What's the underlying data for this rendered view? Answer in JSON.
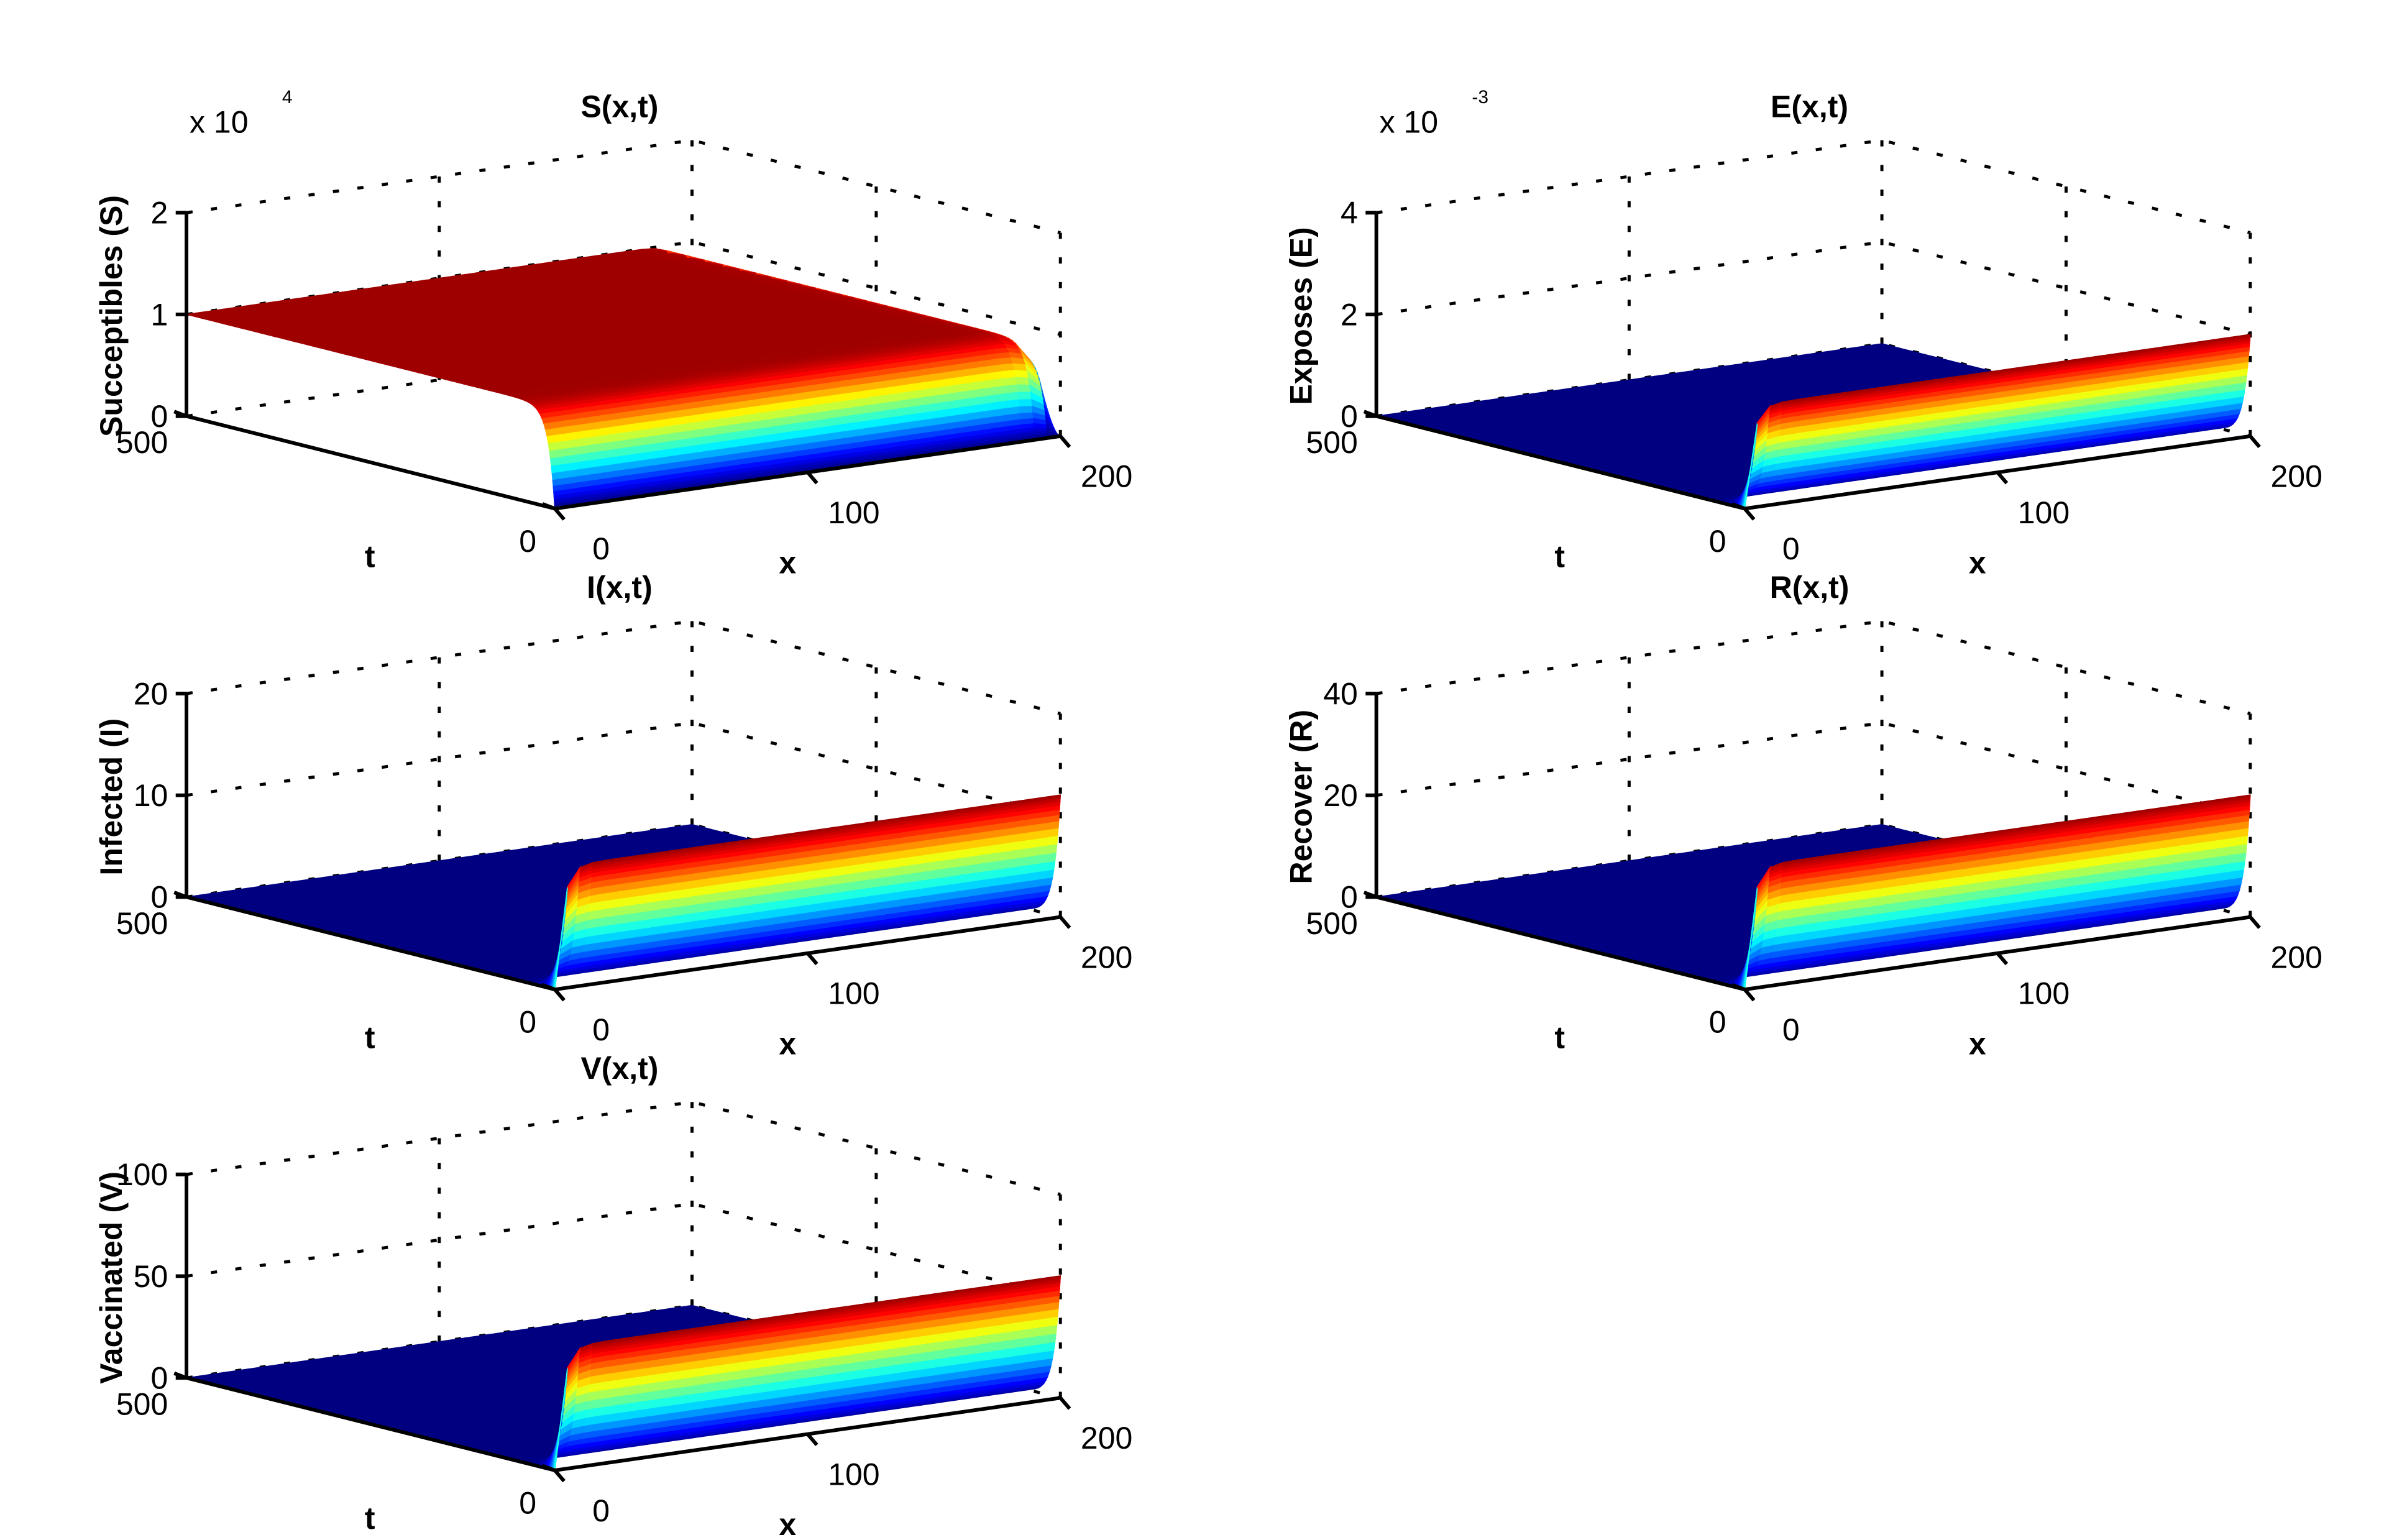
{
  "figure": {
    "layout": "3 rows x 2 columns",
    "colormap": "jet",
    "colors": {
      "background": "#ffffff",
      "axes": "#000000"
    }
  },
  "chart_data": [
    {
      "type": "surface",
      "title": "S(x,t)",
      "xlabel": "x",
      "ylabel": "t",
      "zlabel": "Succeptibles (S)",
      "x_ticks": [
        "0",
        "100",
        "200"
      ],
      "t_ticks": [
        "0",
        "500"
      ],
      "z_ticks": [
        "0",
        "1",
        "2"
      ],
      "exponent": "x 10",
      "exponent_power": "4",
      "xlim": [
        0,
        200
      ],
      "tlim": [
        0,
        500
      ],
      "zlim": [
        0,
        20000
      ],
      "profile": "front-drop",
      "plateau_value": 10000
    },
    {
      "type": "surface",
      "title": "E(x,t)",
      "xlabel": "x",
      "ylabel": "t",
      "zlabel": "Exposes (E)",
      "x_ticks": [
        "0",
        "100",
        "200"
      ],
      "t_ticks": [
        "0",
        "500"
      ],
      "z_ticks": [
        "0",
        "2",
        "4"
      ],
      "exponent": "x 10",
      "exponent_power": "-3",
      "xlim": [
        0,
        200
      ],
      "tlim": [
        0,
        500
      ],
      "zlim": [
        0,
        0.004
      ],
      "profile": "front-rise",
      "plateau_value": 0.002
    },
    {
      "type": "surface",
      "title": "I(x,t)",
      "xlabel": "x",
      "ylabel": "t",
      "zlabel": "Infected (I)",
      "x_ticks": [
        "0",
        "100",
        "200"
      ],
      "t_ticks": [
        "0",
        "500"
      ],
      "z_ticks": [
        "0",
        "10",
        "20"
      ],
      "xlim": [
        0,
        200
      ],
      "tlim": [
        0,
        500
      ],
      "zlim": [
        0,
        20
      ],
      "profile": "front-rise",
      "plateau_value": 12
    },
    {
      "type": "surface",
      "title": "R(x,t)",
      "xlabel": "x",
      "ylabel": "t",
      "zlabel": "Recover (R)",
      "x_ticks": [
        "0",
        "100",
        "200"
      ],
      "t_ticks": [
        "0",
        "500"
      ],
      "z_ticks": [
        "0",
        "20",
        "40"
      ],
      "xlim": [
        0,
        200
      ],
      "tlim": [
        0,
        500
      ],
      "zlim": [
        0,
        40
      ],
      "profile": "front-rise",
      "plateau_value": 24
    },
    {
      "type": "surface",
      "title": "V(x,t)",
      "xlabel": "x",
      "ylabel": "t",
      "zlabel": "Vaccinated (V)",
      "x_ticks": [
        "0",
        "100",
        "200"
      ],
      "t_ticks": [
        "0",
        "500"
      ],
      "z_ticks": [
        "0",
        "50",
        "100"
      ],
      "xlim": [
        0,
        200
      ],
      "tlim": [
        0,
        500
      ],
      "zlim": [
        0,
        100
      ],
      "profile": "front-rise",
      "plateau_value": 60
    }
  ]
}
